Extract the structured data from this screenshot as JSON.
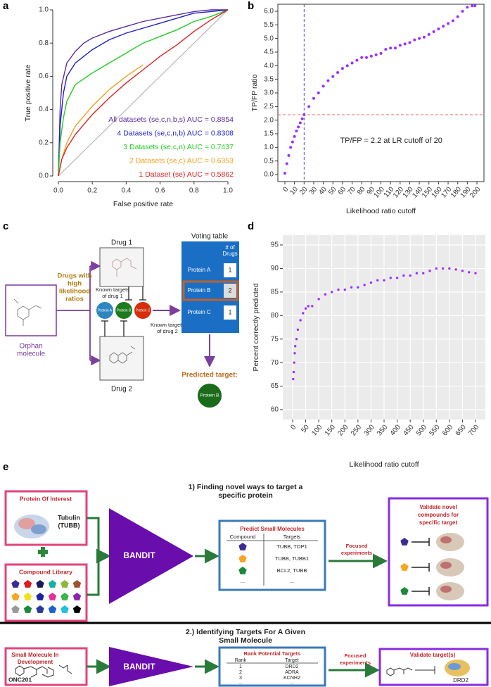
{
  "panel_labels": [
    "a",
    "b",
    "c",
    "d",
    "e"
  ],
  "chart_data": [
    {
      "type": "line",
      "xlabel": "False positive rate",
      "ylabel": "True positive rate",
      "xlim": [
        0,
        1
      ],
      "ylim": [
        0,
        1
      ],
      "xticks": [
        {
          "value": 0,
          "label": "0.0"
        },
        0.2,
        0.4,
        0.6,
        0.8,
        {
          "value": 1,
          "label": "1.0"
        }
      ],
      "yticks": [
        {
          "value": 0,
          "label": "0.0"
        },
        0.2,
        0.4,
        0.6,
        0.8,
        {
          "value": 1,
          "label": "1.0"
        }
      ],
      "series": [
        {
          "name": "All datasets (se,c,n,b,s) AUC = 0.8854",
          "color": "#5b2c9e",
          "x": [
            0,
            0.01,
            0.02,
            0.05,
            0.1,
            0.15,
            0.2,
            0.3,
            0.4,
            0.5,
            0.6,
            0.7,
            0.8,
            0.9,
            1
          ],
          "values": [
            0,
            0.4,
            0.55,
            0.68,
            0.75,
            0.8,
            0.83,
            0.87,
            0.9,
            0.93,
            0.95,
            0.97,
            0.99,
            1,
            1
          ]
        },
        {
          "name": "4 Datasets (se,c,n,b) AUC = 0.8308",
          "color": "#1f1fc8",
          "x": [
            0,
            0.01,
            0.03,
            0.05,
            0.1,
            0.2,
            0.3,
            0.4,
            0.5,
            0.6,
            0.7,
            0.8,
            0.9,
            1
          ],
          "values": [
            0,
            0.3,
            0.5,
            0.6,
            0.68,
            0.76,
            0.82,
            0.86,
            0.89,
            0.92,
            0.95,
            0.98,
            0.99,
            1
          ]
        },
        {
          "name": "3 Datasets (se,c,n) AUC = 0.7437",
          "color": "#22cc22",
          "x": [
            0,
            0.01,
            0.03,
            0.05,
            0.1,
            0.2,
            0.3,
            0.4,
            0.5,
            0.6,
            0.7,
            0.8,
            0.9,
            1
          ],
          "values": [
            0,
            0.2,
            0.35,
            0.45,
            0.55,
            0.62,
            0.68,
            0.74,
            0.8,
            0.84,
            0.88,
            0.93,
            0.96,
            1
          ]
        },
        {
          "name": "2 Datasets (se,c) AUC = 0.6353",
          "color": "#f0a020",
          "x": [
            0,
            0.02,
            0.05,
            0.1,
            0.2,
            0.3,
            0.4,
            0.5
          ],
          "values": [
            0,
            0.1,
            0.2,
            0.3,
            0.42,
            0.52,
            0.6,
            0.67
          ]
        },
        {
          "name": "1 Dataset (se) AUC = 0.5862",
          "color": "#e02020",
          "x": [
            0,
            0.02,
            0.05,
            0.1,
            0.2,
            0.3,
            0.4,
            0.5,
            0.6,
            0.7,
            0.8,
            0.9,
            1
          ],
          "values": [
            0,
            0.1,
            0.17,
            0.25,
            0.37,
            0.47,
            0.56,
            0.64,
            0.72,
            0.79,
            0.87,
            0.94,
            1
          ]
        }
      ]
    },
    {
      "type": "scatter",
      "xlabel": "Likelihood ratio cutoff",
      "ylabel": "TP/FP ratio",
      "color": "#9b30ff",
      "xlim": [
        0,
        200
      ],
      "ylim": [
        0,
        6
      ],
      "xticks": [
        0,
        10,
        20,
        30,
        40,
        50,
        60,
        70,
        80,
        90,
        100,
        110,
        120,
        130,
        140,
        150,
        160,
        170,
        180,
        190,
        200
      ],
      "yticks": [
        {
          "value": 0,
          "label": "0.0"
        },
        0.5,
        {
          "value": 1,
          "label": "1.0"
        },
        1.5,
        {
          "value": 2,
          "label": "2.0"
        },
        2.5,
        {
          "value": 3,
          "label": "3.0"
        },
        3.5,
        {
          "value": 4,
          "label": "4.0"
        },
        4.5,
        {
          "value": 5,
          "label": "5.0"
        },
        5.5,
        {
          "value": 6,
          "label": "6.0"
        }
      ],
      "vline": 20,
      "hline": 2.2,
      "annotation": "TP/FP = 2.2 at LR cutoff of 20",
      "x": [
        0,
        2,
        4,
        6,
        8,
        10,
        12,
        14,
        16,
        18,
        20,
        25,
        30,
        35,
        40,
        45,
        50,
        55,
        60,
        65,
        70,
        75,
        80,
        85,
        90,
        95,
        100,
        105,
        110,
        115,
        120,
        125,
        130,
        135,
        140,
        145,
        150,
        155,
        160,
        165,
        170,
        175,
        180,
        185,
        190,
        195,
        198
      ],
      "values": [
        0.05,
        0.4,
        0.7,
        1.0,
        1.2,
        1.4,
        1.6,
        1.75,
        1.9,
        2.05,
        2.2,
        2.5,
        2.8,
        3.0,
        3.25,
        3.45,
        3.6,
        3.75,
        3.9,
        4.0,
        4.1,
        4.2,
        4.3,
        4.3,
        4.35,
        4.4,
        4.45,
        4.6,
        4.65,
        4.65,
        4.75,
        4.8,
        4.85,
        4.95,
        5.0,
        5.05,
        5.15,
        5.25,
        5.35,
        5.45,
        5.55,
        5.65,
        5.8,
        6.0,
        6.15,
        6.2,
        6.2
      ]
    },
    {
      "type": "scatter",
      "xlabel": "Likelihood ratio cutoff",
      "ylabel": "Percent correctly predicted",
      "color": "#9b30ff",
      "background": "#ebebeb",
      "grid": true,
      "xlim": [
        0,
        700
      ],
      "ylim": [
        60,
        95
      ],
      "xticks": [
        0,
        50,
        100,
        150,
        200,
        250,
        300,
        350,
        400,
        450,
        500,
        550,
        600,
        650,
        700
      ],
      "yticks": [
        60,
        65,
        70,
        75,
        80,
        85,
        90,
        95
      ],
      "x": [
        2,
        4,
        6,
        8,
        10,
        15,
        20,
        30,
        40,
        50,
        60,
        75,
        100,
        125,
        150,
        175,
        200,
        225,
        250,
        275,
        300,
        325,
        350,
        375,
        400,
        425,
        450,
        475,
        500,
        525,
        550,
        575,
        600,
        625,
        650,
        675,
        700
      ],
      "values": [
        66.5,
        68,
        70,
        72,
        73.5,
        75,
        77,
        79,
        80.5,
        81.5,
        82,
        82,
        83.5,
        84.5,
        85,
        85.5,
        85.5,
        86,
        86,
        86.5,
        87,
        87.5,
        87.5,
        88,
        88,
        88.5,
        88.5,
        89,
        89,
        89.5,
        90,
        90,
        90,
        89.8,
        89.5,
        89.2,
        89
      ]
    }
  ],
  "panel_c": {
    "drugs": [
      "Drug 1",
      "Drug 2"
    ],
    "drugs_label": [
      "Drugs with",
      "high",
      "likelihood",
      "ratios"
    ],
    "known_targets_1": [
      "Known targets",
      "of drug 1"
    ],
    "known_targets_2": [
      "Known targets",
      "of drug 2"
    ],
    "proteins": [
      "Protein A",
      "Protein B",
      "Protein C"
    ],
    "orphan": [
      "Orphan",
      "molecule"
    ],
    "voting_table": {
      "title": "Voting table",
      "header": [
        "# of",
        "Drugs"
      ],
      "rows": [
        [
          "Protein A",
          1
        ],
        [
          "Protein B",
          2
        ],
        [
          "Protein C",
          1
        ]
      ]
    },
    "predicted_label": "Predicted target:",
    "predicted": "Protein B"
  },
  "panel_e": {
    "section1": {
      "title": [
        "1) Finding novel ways to target a",
        "specific protein"
      ],
      "protein_box": {
        "title": "Protein Of Interest",
        "protein": [
          "Tubulin",
          "(TUBB)"
        ]
      },
      "library_title": "Compound Library",
      "model": "BANDIT",
      "table": {
        "title": "Predict Small Molecules",
        "header": [
          "Compound",
          "Targets"
        ],
        "targets": [
          "TUBB, TOP1",
          "TUBB, TUBB1",
          "BCL2, TUBB",
          "..."
        ],
        "compound_more": "..."
      },
      "experiments": [
        "Focused",
        "experiments"
      ],
      "validate": [
        "Validate novel",
        "compounds for",
        "specific target"
      ]
    },
    "section2": {
      "title": [
        "2.) Identifying Targets For A Given",
        "Small Molecule"
      ],
      "molecule_box": {
        "title": [
          "Small Molecule In",
          "Development"
        ],
        "name": "ONC201"
      },
      "model": "BANDIT",
      "table": {
        "title": "Rank Potential Targets",
        "header": [
          "Rank",
          "Target"
        ],
        "rows": [
          [
            1,
            "DRD2"
          ],
          [
            2,
            "ADRA"
          ],
          [
            3,
            "KCNH2"
          ],
          [
            "...",
            "..."
          ]
        ]
      },
      "experiments": [
        "Focused",
        "experiments"
      ],
      "validate": "Validate target(s)",
      "target": "DRD2"
    }
  }
}
